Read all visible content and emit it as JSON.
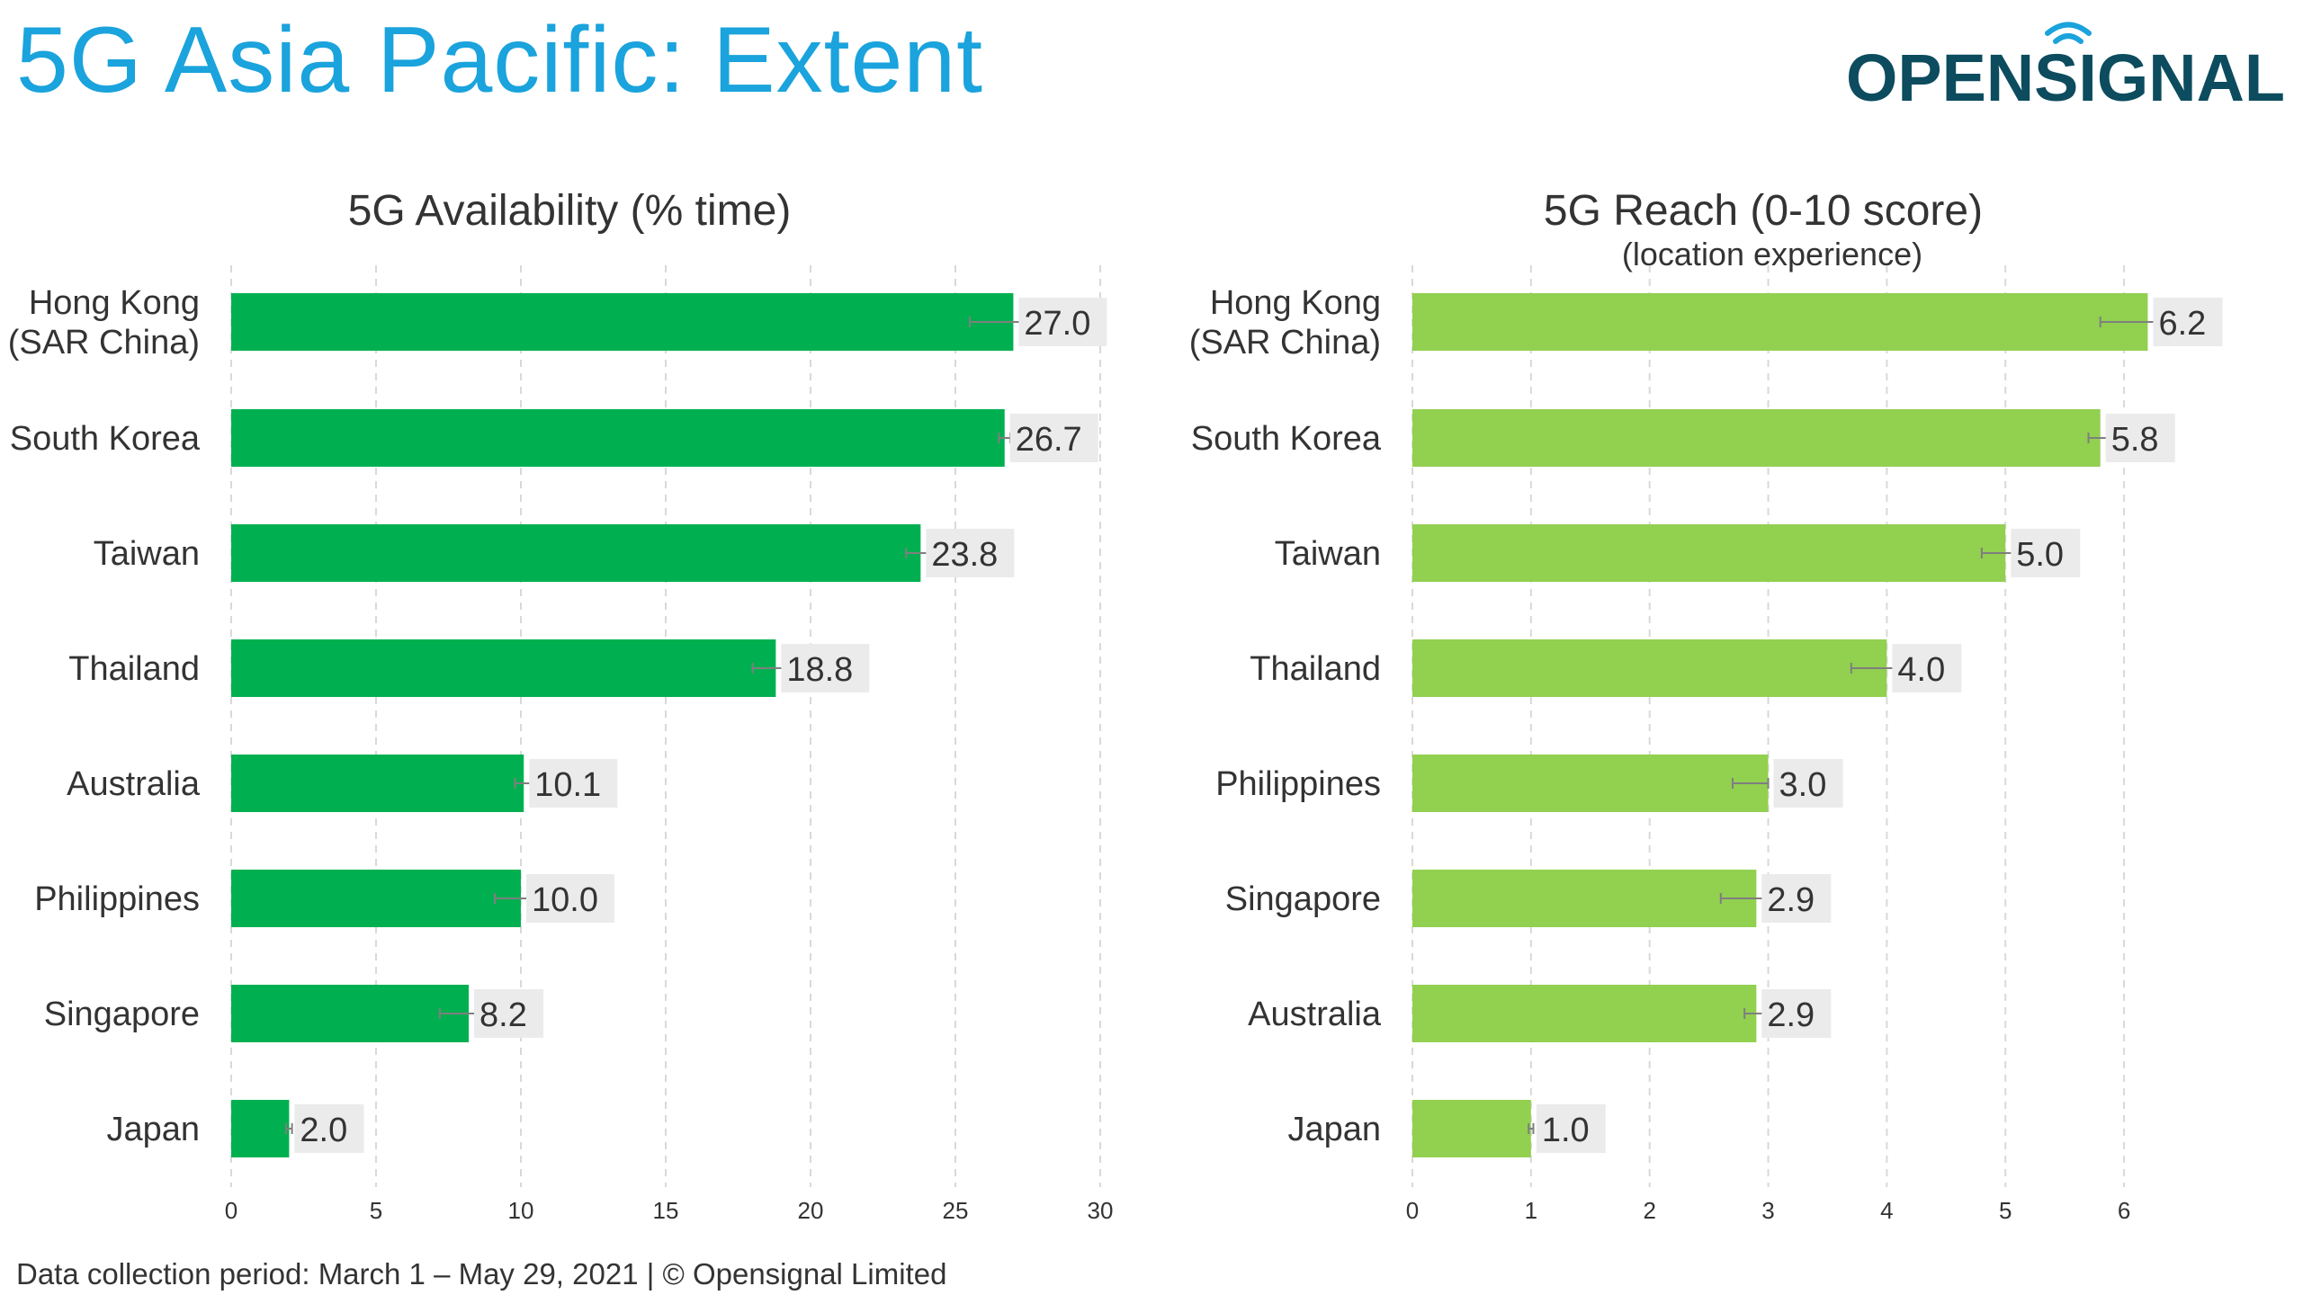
{
  "page": {
    "title": "5G Asia Pacific: Extent",
    "brand": {
      "name": "OPENSIGNAL",
      "color": "#0c4c5e"
    },
    "footnote": "Data collection period: March 1 – May 29, 2021  |  © Opensignal Limited"
  },
  "colors": {
    "title": "#1aa3dc",
    "availability_bar": "#00b050",
    "reach_bar": "#92d050",
    "label_bg": "#ebebeb",
    "text": "#333333",
    "grid": "#d9d9d9"
  },
  "chart_data": [
    {
      "type": "bar",
      "orientation": "horizontal",
      "title": "5G Availability (% time)",
      "subtitle": "",
      "categories": [
        "Hong Kong\n(SAR China)",
        "South Korea",
        "Taiwan",
        "Thailand",
        "Australia",
        "Philippines",
        "Singapore",
        "Japan"
      ],
      "values": [
        27.0,
        26.7,
        23.8,
        18.8,
        10.1,
        10.0,
        8.2,
        2.0
      ],
      "value_labels": [
        "27.0",
        "26.7",
        "23.8",
        "18.8",
        "10.1",
        "10.0",
        "8.2",
        "2.0"
      ],
      "error_low": [
        25.5,
        26.5,
        23.3,
        18.0,
        9.8,
        9.1,
        7.2,
        1.9
      ],
      "error_high": [
        27.3,
        26.9,
        24.3,
        19.6,
        10.4,
        10.9,
        9.2,
        2.1
      ],
      "xlim": [
        0,
        30
      ],
      "xticks": [
        0,
        5,
        10,
        15,
        20,
        25,
        30
      ],
      "grid": true,
      "color": "#00b050"
    },
    {
      "type": "bar",
      "orientation": "horizontal",
      "title": "5G Reach (0-10 score)",
      "subtitle": "(location experience)",
      "categories": [
        "Hong Kong\n(SAR China)",
        "South Korea",
        "Taiwan",
        "Thailand",
        "Philippines",
        "Singapore",
        "Australia",
        "Japan"
      ],
      "values": [
        6.2,
        5.8,
        5.0,
        4.0,
        3.0,
        2.9,
        2.9,
        1.0
      ],
      "value_labels": [
        "6.2",
        "5.8",
        "5.0",
        "4.0",
        "3.0",
        "2.9",
        "2.9",
        "1.0"
      ],
      "error_low": [
        5.8,
        5.7,
        4.8,
        3.7,
        2.7,
        2.6,
        2.8,
        0.98
      ],
      "error_high": [
        6.3,
        5.9,
        5.1,
        4.1,
        3.0,
        3.0,
        3.0,
        1.02
      ],
      "xlim": [
        0,
        6.5
      ],
      "xticks": [
        0,
        1,
        2,
        3,
        4,
        5,
        6
      ],
      "grid": true,
      "color": "#92d050"
    }
  ]
}
